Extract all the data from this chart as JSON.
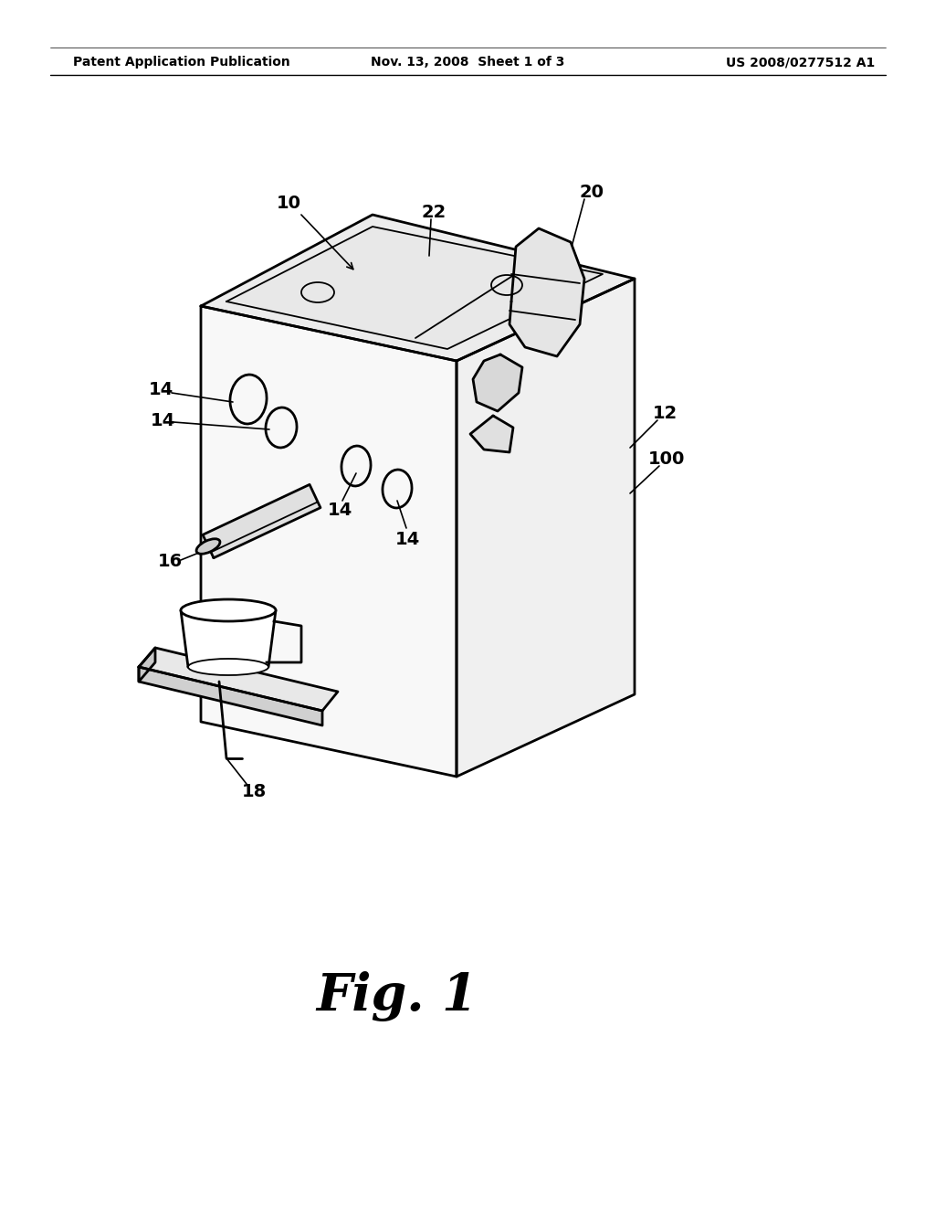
{
  "bg_color": "#ffffff",
  "line_color": "#000000",
  "header_left": "Patent Application Publication",
  "header_mid": "Nov. 13, 2008  Sheet 1 of 3",
  "header_right": "US 2008/0277512 A1",
  "fig_caption": "Fig. 1"
}
